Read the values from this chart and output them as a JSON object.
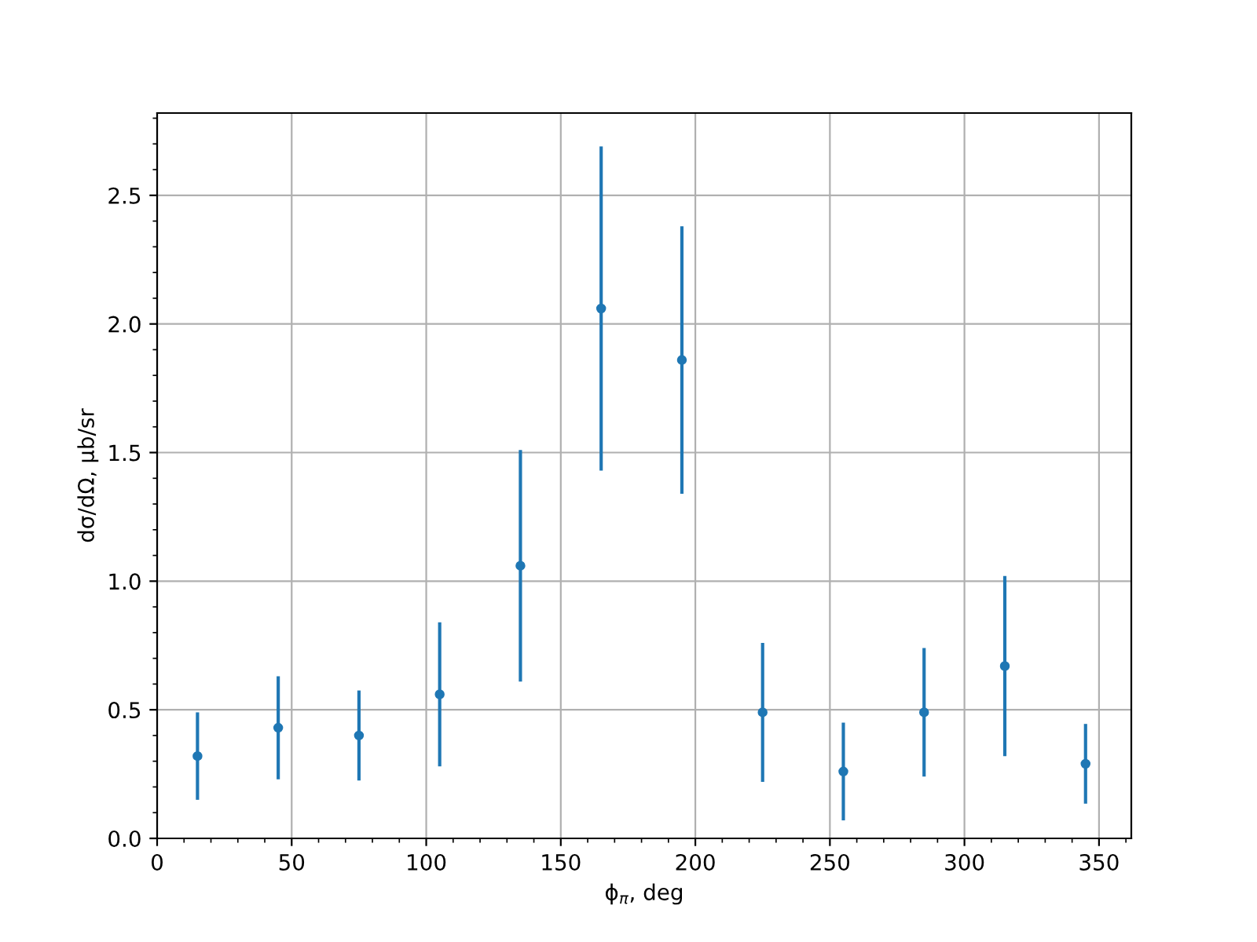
{
  "chart_data": {
    "type": "scatter",
    "xlabel": "ϕ$_{π}$, deg",
    "ylabel": "dσ/dΩ, μb/sr",
    "x": [
      15,
      45,
      75,
      105,
      135,
      165,
      195,
      225,
      255,
      285,
      315,
      345
    ],
    "series": [
      {
        "color": "#1f77b4",
        "values": [
          0.32,
          0.43,
          0.4,
          0.56,
          1.06,
          2.06,
          1.86,
          0.49,
          0.26,
          0.49,
          0.67,
          0.29
        ],
        "errors": [
          0.17,
          0.2,
          0.175,
          0.28,
          0.45,
          0.63,
          0.52,
          0.27,
          0.19,
          0.25,
          0.35,
          0.155
        ]
      }
    ],
    "xlim": [
      0,
      362
    ],
    "xticks": [
      0,
      50,
      100,
      150,
      200,
      250,
      300,
      350
    ],
    "ylim": [
      0,
      2.82
    ],
    "yticks": [
      {
        "value": 0,
        "label": "0.0"
      },
      0.5,
      {
        "value": 1,
        "label": "1.0"
      },
      1.5,
      {
        "value": 2,
        "label": "2.0"
      },
      2.5
    ],
    "grid": true,
    "marker": "circle",
    "legend": false
  }
}
